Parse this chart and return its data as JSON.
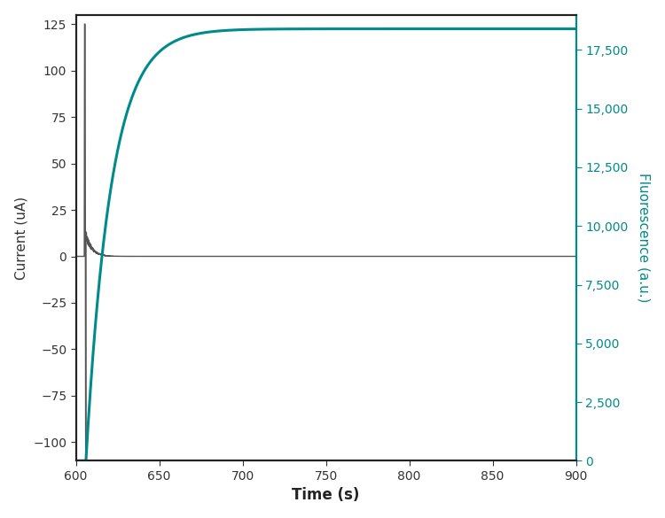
{
  "title": "",
  "xlabel": "Time (s)",
  "ylabel_left": "Current (uA)",
  "ylabel_right": "Fluorescence (a.u.)",
  "xlim": [
    600,
    900
  ],
  "ylim_left": [
    -110,
    130
  ],
  "ylim_right": [
    0,
    19000
  ],
  "yticks_left": [
    -100,
    -75,
    -50,
    -25,
    0,
    25,
    50,
    75,
    100,
    125
  ],
  "yticks_right": [
    0,
    2500,
    5000,
    7500,
    10000,
    12500,
    15000,
    17500
  ],
  "xticks": [
    600,
    650,
    700,
    750,
    800,
    850,
    900
  ],
  "current_color": "#555555",
  "fluorescence_color": "#008B8B",
  "left_label_color": "#333333",
  "right_label_color": "#008B8B",
  "background_color": "#ffffff",
  "fluorescence_plateau_val": 18400,
  "t_start": 600,
  "t_end": 900,
  "figwidth": 7.5,
  "figheight": 5.85
}
